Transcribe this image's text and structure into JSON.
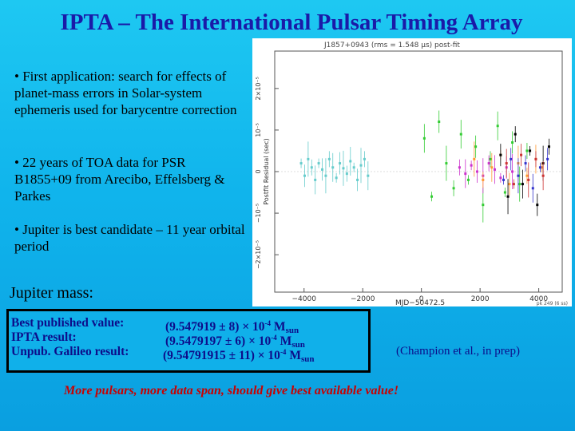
{
  "title": "IPTA – The International Pulsar Timing Array",
  "bullets": [
    "• First application: search for effects of planet-mass errors in Solar-system ephemeris used for barycentre correction",
    "• 22 years of TOA data for PSR B1855+09 from Arecibo, Effelsberg & Parkes",
    "• Jupiter is best candidate – 11 year orbital period"
  ],
  "jupiter_label": "Jupiter mass:",
  "results": {
    "best": {
      "label": "Best published value:",
      "value": "(9.547919 ± 8) × 10",
      "exp": "-4",
      "unit": " M",
      "sub": "sun"
    },
    "ipta": {
      "label": "IPTA result:",
      "value": "(9.5479197 ± 6) × 10",
      "exp": "-4",
      "unit": " M",
      "sub": "sun"
    },
    "galileo": {
      "label": "Unpub. Galileo result:",
      "value": "(9.54791915 ± 11) × 10",
      "exp": "-4",
      "unit": " M",
      "sub": "sun"
    }
  },
  "citation": "(Champion et al., in prep)",
  "footer": "More pulsars, more data span, should give best available value!",
  "chart_data": {
    "type": "scatter",
    "title": "J1857+0943 (rms = 1.548 μs) post-fit",
    "xlabel": "MJD−50472.5",
    "ylabel": "Postfit Residual (sec)",
    "xlim": [
      -5000,
      4800
    ],
    "ylim": [
      -2.9e-05,
      2.9e-05
    ],
    "xticks": [
      -4000,
      -2000,
      0,
      2000,
      4000
    ],
    "xtick_labels": [
      "−4000",
      "−2000",
      "0",
      "2000",
      "4000"
    ],
    "yticks": [
      2e-05,
      1e-05,
      0,
      -1e-05,
      -2e-05
    ],
    "ytick_labels": [
      "2×10⁻⁵",
      "10⁻⁵",
      "0",
      "−10⁻⁵",
      "−2×10⁻⁵"
    ],
    "footnote": "pk 249 (6 ss)",
    "series": [
      {
        "color": "#66cccc",
        "x": [
          -4100,
          -3980,
          -3860,
          -3740,
          -3620,
          -3500,
          -3380,
          -3260,
          -3140,
          -3020,
          -2900,
          -2780,
          -2660,
          -2540,
          -2420,
          -2300,
          -2180,
          -2060,
          -1940,
          -1820
        ],
        "y": [
          2e-06,
          -1e-06,
          3e-06,
          1e-06,
          -2e-06,
          2e-06,
          5e-07,
          -1e-06,
          3e-06,
          1e-06,
          -1.5e-06,
          2e-06,
          8e-07,
          -5e-07,
          2.5e-06,
          1e-06,
          -2e-06,
          1.5e-06,
          3e-06,
          -1e-06
        ]
      },
      {
        "color": "#33cc33",
        "x": [
          100,
          350,
          600,
          850,
          1100,
          1350,
          1600,
          1850,
          2100,
          2350,
          2600,
          2850,
          3100,
          3350,
          3600
        ],
        "y": [
          8e-06,
          -6e-06,
          1.2e-05,
          2e-06,
          -4e-06,
          9e-06,
          -2e-06,
          6e-06,
          -8e-06,
          3e-06,
          1.1e-05,
          -5e-06,
          7e-06,
          -3e-06,
          5e-06
        ]
      },
      {
        "color": "#cc33cc",
        "x": [
          1300,
          1500,
          1700,
          1900,
          2100,
          2300,
          2500,
          2700,
          2900,
          3100
        ],
        "y": [
          1e-06,
          -5e-07,
          1.5e-06,
          0,
          -1e-06,
          2e-06,
          5e-07,
          -1.5e-06,
          1e-06,
          0
        ]
      },
      {
        "color": "#ff9933",
        "x": [
          1800,
          2100,
          2400,
          2700,
          3000,
          3300,
          3600,
          3900,
          4100
        ],
        "y": [
          3e-06,
          -2e-06,
          1e-06,
          4e-06,
          -3e-06,
          2e-06,
          -1e-06,
          3e-06,
          1e-06
        ]
      },
      {
        "color": "#000000",
        "x": [
          2700,
          2950,
          3200,
          3450,
          3700,
          3950,
          4150,
          4350
        ],
        "y": [
          4e-06,
          -6e-06,
          9e-06,
          -3e-06,
          5e-06,
          -8e-06,
          2e-06,
          6e-06
        ]
      },
      {
        "color": "#3333cc",
        "x": [
          2800,
          3050,
          3300,
          3550,
          3800,
          4050,
          4300
        ],
        "y": [
          -2e-06,
          3e-06,
          -1e-06,
          2e-06,
          -4e-06,
          1e-06,
          3e-06
        ]
      },
      {
        "color": "#cc3333",
        "x": [
          2900,
          3150,
          3400,
          3650,
          3900,
          4150
        ],
        "y": [
          2e-06,
          -3e-06,
          4e-06,
          -2e-06,
          3e-06,
          -1e-06
        ]
      }
    ]
  }
}
